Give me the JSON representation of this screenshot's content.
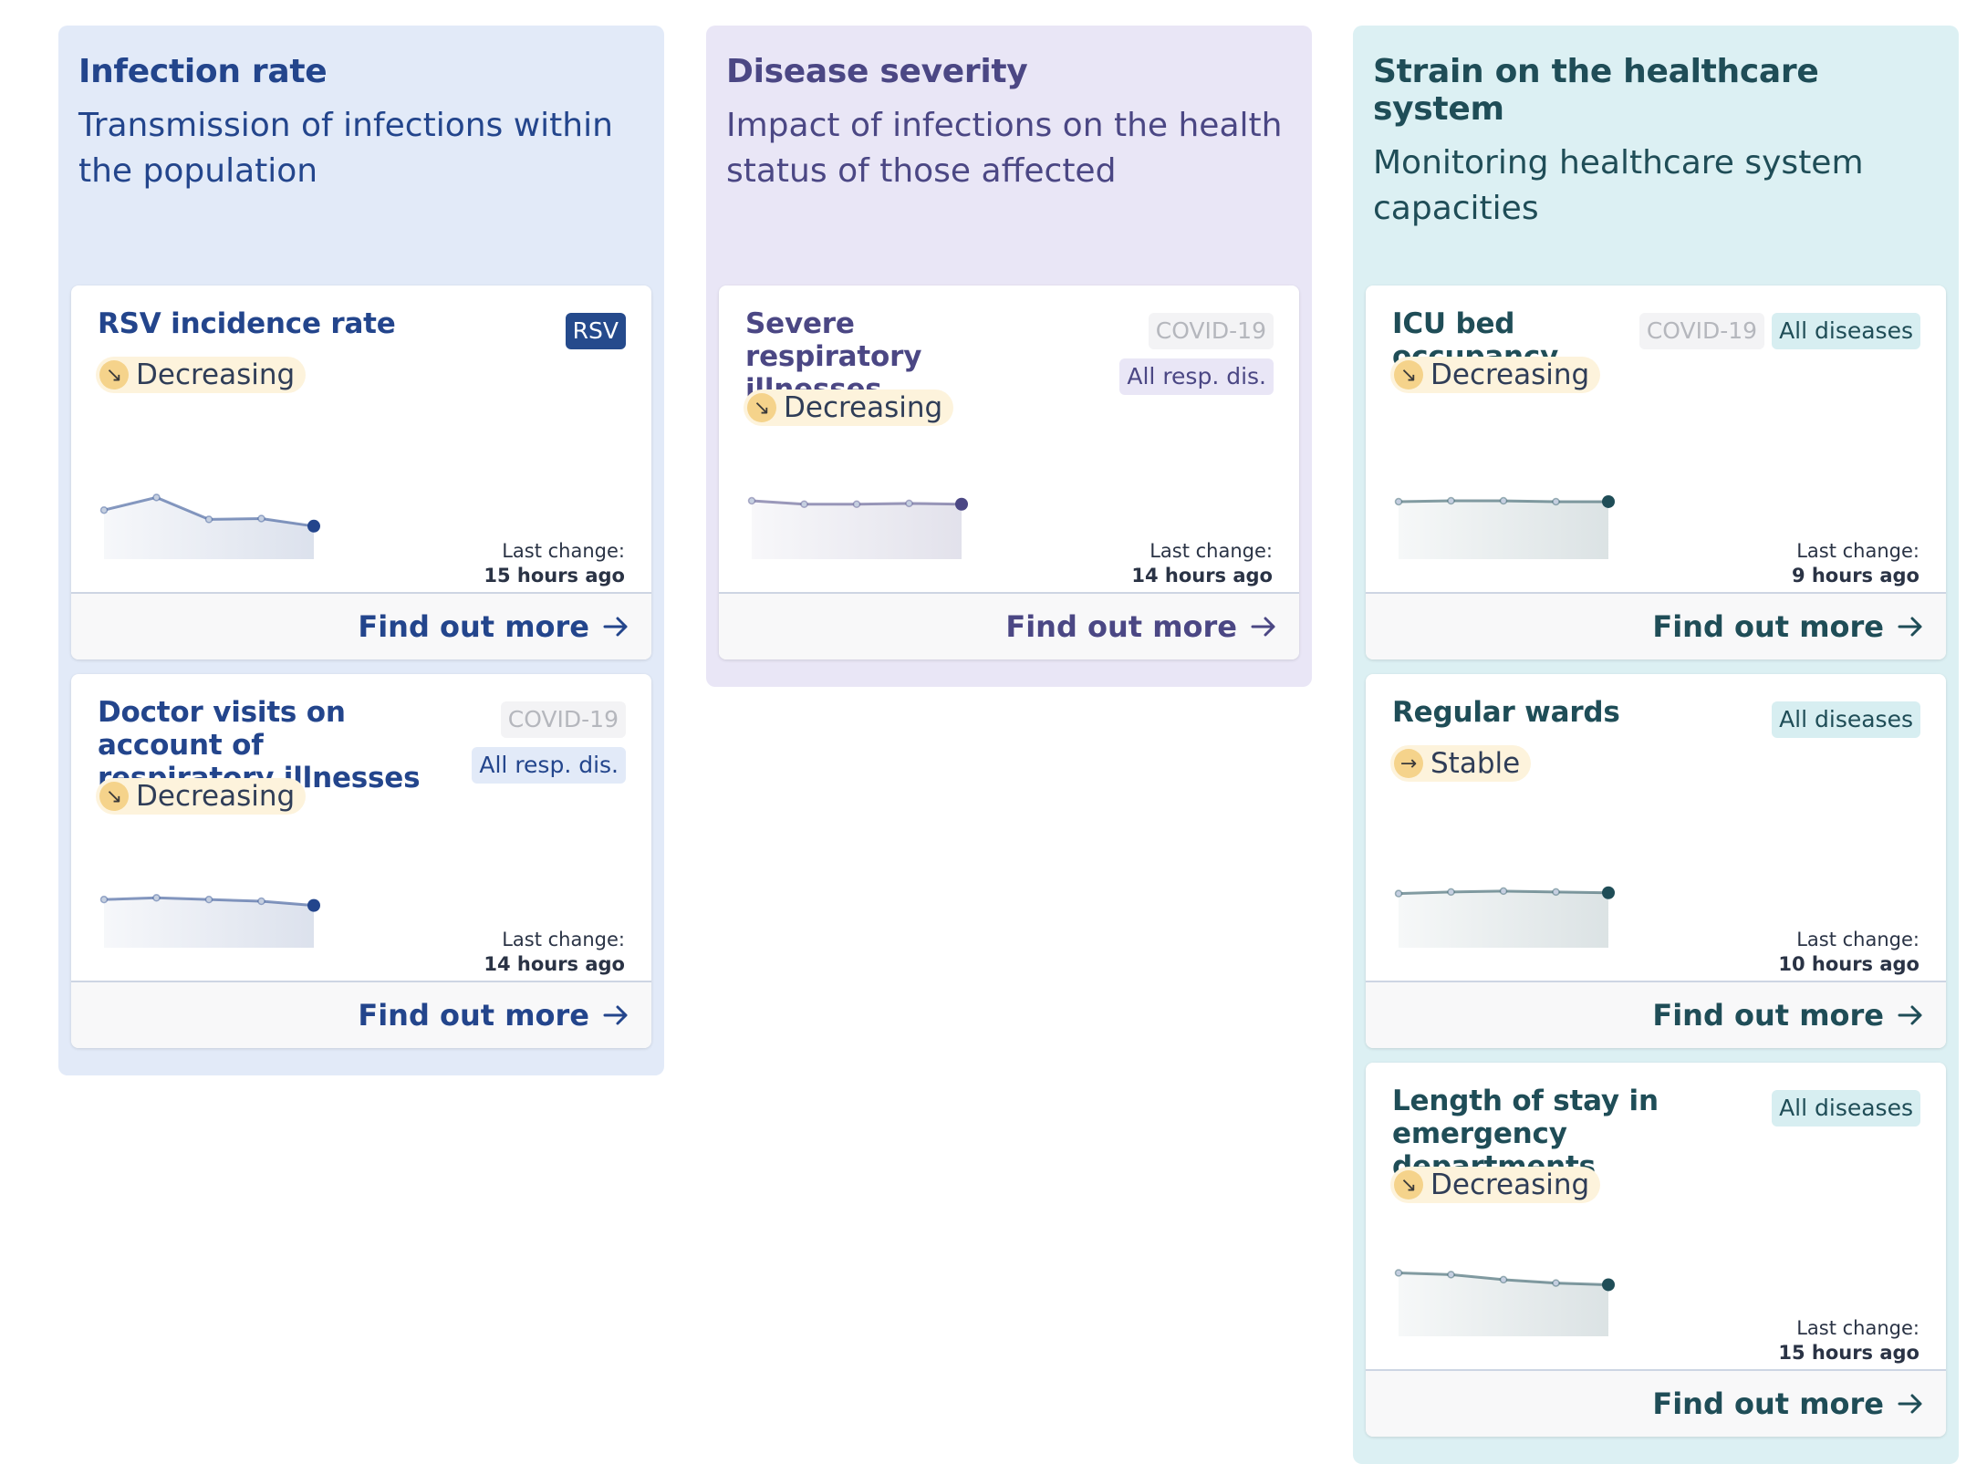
{
  "columns": [
    {
      "title": "Infection rate",
      "subtitle": "Transmission of infections within the population",
      "cards": [
        {
          "title": "RSV incidence rate",
          "badges": [
            "RSV"
          ],
          "trend": {
            "label": "Decreasing",
            "icon": "arrow-down-right-icon"
          },
          "sparkline": [
            0.63,
            0.78,
            0.52,
            0.53,
            0.44
          ],
          "last_change_label": "Last change:",
          "last_change_time": "15 hours ago",
          "link": "Find out more"
        },
        {
          "title": "Doctor visits on account of respiratory illnesses",
          "badges": [
            "COVID-19",
            "All resp. dis."
          ],
          "trend": {
            "label": "Decreasing",
            "icon": "arrow-down-right-icon"
          },
          "sparkline": [
            0.62,
            0.64,
            0.62,
            0.6,
            0.55
          ],
          "last_change_label": "Last change:",
          "last_change_time": "14 hours ago",
          "link": "Find out more"
        }
      ]
    },
    {
      "title": "Disease severity",
      "subtitle": "Impact of infections on the health status of those affected",
      "cards": [
        {
          "title": "Severe respiratory illnesses",
          "badges": [
            "COVID-19",
            "All resp. dis."
          ],
          "trend": {
            "label": "Decreasing",
            "icon": "arrow-down-right-icon"
          },
          "sparkline": [
            0.74,
            0.7,
            0.7,
            0.71,
            0.7
          ],
          "last_change_label": "Last change:",
          "last_change_time": "14 hours ago",
          "link": "Find out more"
        }
      ]
    },
    {
      "title": "Strain on the healthcare system",
      "subtitle": "Monitoring healthcare system capacities",
      "cards": [
        {
          "title": "ICU bed occupancy",
          "badges": [
            "COVID-19",
            "All diseases"
          ],
          "trend": {
            "label": "Decreasing",
            "icon": "arrow-down-right-icon"
          },
          "sparkline": [
            0.73,
            0.74,
            0.74,
            0.73,
            0.73
          ],
          "last_change_label": "Last change:",
          "last_change_time": "9 hours ago",
          "link": "Find out more"
        },
        {
          "title": "Regular wards",
          "badges": [
            "All diseases"
          ],
          "trend": {
            "label": "Stable",
            "icon": "arrow-right-icon"
          },
          "sparkline": [
            0.69,
            0.71,
            0.72,
            0.71,
            0.7
          ],
          "last_change_label": "Last change:",
          "last_change_time": "10 hours ago",
          "link": "Find out more"
        },
        {
          "title": "Length of stay in emergency departments",
          "badges": [
            "All diseases"
          ],
          "trend": {
            "label": "Decreasing",
            "icon": "arrow-down-right-icon"
          },
          "sparkline": [
            0.8,
            0.78,
            0.72,
            0.68,
            0.66
          ],
          "last_change_label": "Last change:",
          "last_change_time": "15 hours ago",
          "link": "Find out more"
        }
      ]
    }
  ],
  "colors": {
    "infection": "#23458c",
    "severity": "#4b4784",
    "strain": "#1f4d57",
    "trend_bg": "#fdf3dc",
    "trend_icon_bg": "#f5d38b"
  }
}
